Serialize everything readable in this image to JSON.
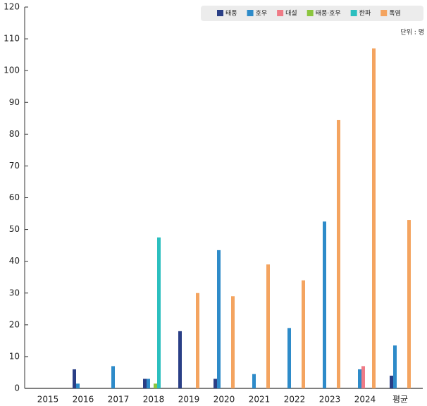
{
  "chart_data": {
    "type": "bar",
    "unit_label": "단위 : 명",
    "categories": [
      "2015",
      "2016",
      "2017",
      "2018",
      "2019",
      "2020",
      "2021",
      "2022",
      "2023",
      "2024",
      "평균"
    ],
    "series": [
      {
        "name": "태풍",
        "color": "#2a3f86",
        "values": [
          null,
          6,
          null,
          3,
          18,
          3,
          null,
          null,
          null,
          null,
          4
        ]
      },
      {
        "name": "호우",
        "color": "#2e8bc9",
        "values": [
          null,
          1.5,
          7,
          3,
          null,
          43.5,
          4.5,
          19,
          52.5,
          6,
          13.5
        ]
      },
      {
        "name": "대설",
        "color": "#ef7b86",
        "values": [
          null,
          null,
          null,
          null,
          null,
          null,
          null,
          null,
          null,
          7,
          null
        ]
      },
      {
        "name": "태풍·호우",
        "color": "#8cc63f",
        "values": [
          null,
          null,
          null,
          1.5,
          null,
          null,
          null,
          null,
          null,
          null,
          null
        ]
      },
      {
        "name": "한파",
        "color": "#2bbfbf",
        "values": [
          null,
          null,
          null,
          47.5,
          null,
          null,
          null,
          null,
          null,
          null,
          null
        ]
      },
      {
        "name": "폭염",
        "color": "#f4a460",
        "values": [
          null,
          null,
          null,
          null,
          30,
          29,
          39,
          34,
          84.5,
          107,
          53
        ]
      }
    ],
    "ylim": [
      0,
      120
    ],
    "yticks": [
      0,
      10,
      20,
      30,
      40,
      50,
      60,
      70,
      80,
      90,
      100,
      110,
      120
    ],
    "grid": false,
    "legend": "top-right"
  }
}
